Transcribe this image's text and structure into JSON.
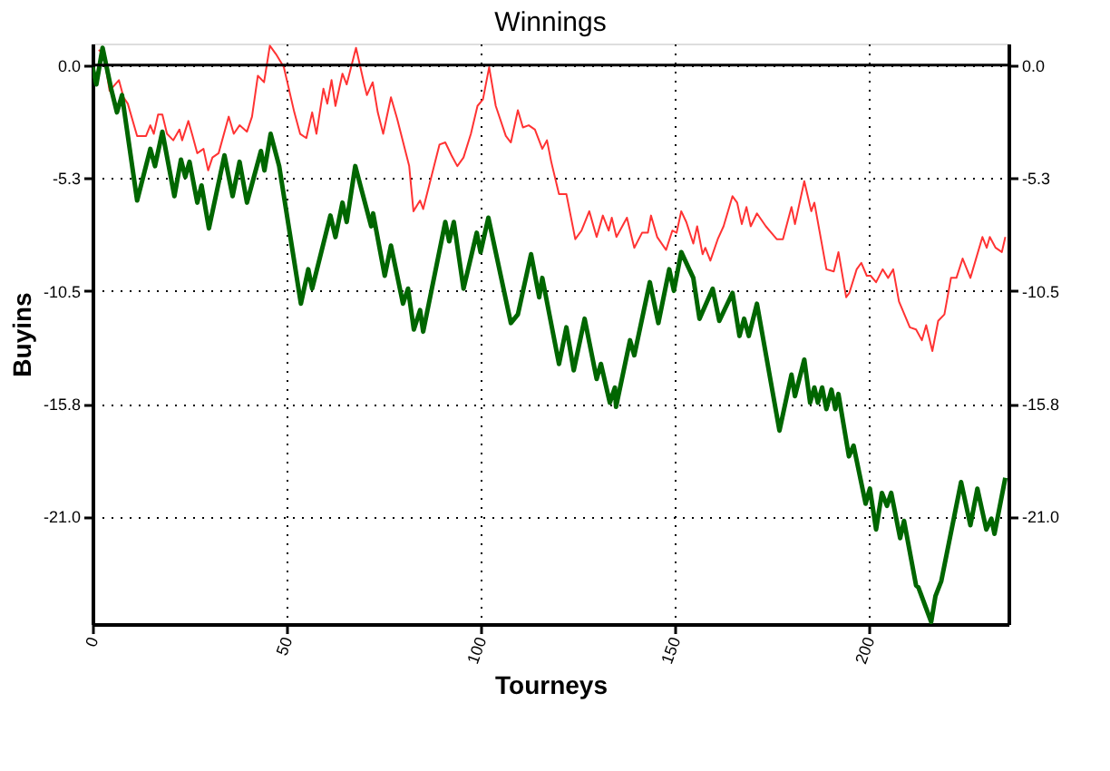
{
  "chart_data": {
    "type": "line",
    "title": "Winnings",
    "xlabel": "Tourneys",
    "ylabel": "Buyins",
    "xlim": [
      0,
      236
    ],
    "xticks": [
      0,
      50,
      100,
      150,
      200
    ],
    "ylim": [
      -26,
      1
    ],
    "yticks": [
      {
        "value": 0,
        "label": "0.0"
      },
      {
        "value": -5.25,
        "label": "-5.3"
      },
      -10.5,
      {
        "value": -15.75,
        "label": "-15.8"
      },
      {
        "value": -21,
        "label": "-21.0"
      }
    ],
    "y2lim": [
      -26,
      1
    ],
    "y2ticks": [
      {
        "value": 0,
        "label": "0.0"
      },
      {
        "value": -5.25,
        "label": "-5.3"
      },
      -10.5,
      {
        "value": -15.75,
        "label": "-15.8"
      },
      {
        "value": -21,
        "label": "-21.0"
      }
    ],
    "grid": true,
    "legend": false,
    "marker": "none",
    "line_style": "solid",
    "ref_lines": [
      {
        "axis": "y",
        "value": 0,
        "color": "#000000"
      }
    ],
    "series": [
      {
        "color": "#ff3333",
        "x": [
          1.6,
          2.9,
          4.4,
          6.8,
          8.0,
          9.1,
          11.5,
          13.8,
          14.9,
          15.8,
          16.9,
          18.0,
          19.2,
          20.8,
          22.4,
          23.1,
          24.7,
          25.8,
          27.0,
          28.6,
          29.8,
          30.9,
          32.5,
          35.1,
          36.4,
          37.9,
          39.8,
          41.1,
          42.6,
          44.2,
          45.7,
          47.3,
          49.3,
          52.0,
          53.5,
          55.1,
          56.6,
          57.7,
          59.5,
          60.5,
          61.6,
          62.6,
          64.4,
          65.5,
          67.9,
          69.9,
          70.7,
          72.2,
          73.5,
          74.9,
          76.9,
          78.5,
          81.6,
          82.7,
          84.4,
          85.2,
          89.4,
          90.9,
          92.5,
          94.0,
          95.6,
          97.5,
          99.2,
          100.6,
          102.2,
          103.9,
          106.5,
          107.8,
          109.6,
          110.9,
          112.4,
          114.0,
          115.9,
          117.1,
          118.2,
          120.2,
          122.1,
          124.4,
          126.0,
          128.0,
          129.9,
          131.5,
          133.0,
          133.8,
          135.0,
          137.7,
          139.6,
          141.6,
          143.1,
          143.9,
          145.5,
          147.8,
          149.4,
          150.5,
          151.7,
          153.0,
          154.8,
          155.8,
          157.2,
          157.9,
          159.2,
          161.1,
          162.6,
          164.9,
          166.1,
          167.3,
          168.5,
          169.6,
          171.2,
          173.5,
          176.3,
          177.9,
          180.1,
          181.0,
          183.4,
          185.2,
          186.0,
          189.1,
          191.0,
          192.2,
          194.2,
          195.0,
          196.9,
          198.1,
          199.5,
          200.5,
          201.9,
          203.6,
          205.0,
          206.3,
          207.8,
          210.6,
          212.2,
          213.7,
          214.8,
          216.4,
          217.9,
          219.5,
          221.2,
          222.6,
          224.2,
          226.2,
          229.3,
          230.4,
          231.2,
          232.7,
          234.3,
          235.2
        ],
        "values": [
          0.7,
          0.5,
          -1.2,
          -0.7,
          -1.5,
          -1.8,
          -3.3,
          -3.3,
          -2.8,
          -3.2,
          -2.3,
          -2.3,
          -3.2,
          -3.5,
          -3.0,
          -3.5,
          -2.6,
          -3.3,
          -4.1,
          -3.9,
          -4.9,
          -4.3,
          -4.1,
          -2.4,
          -3.2,
          -2.8,
          -3.1,
          -2.4,
          -0.5,
          -0.8,
          0.9,
          0.5,
          -0.1,
          -2.2,
          -3.2,
          -3.4,
          -2.2,
          -3.2,
          -1.1,
          -1.8,
          -0.7,
          -1.9,
          -0.4,
          -0.9,
          0.8,
          -0.8,
          -1.4,
          -0.8,
          -2.2,
          -3.2,
          -1.5,
          -2.5,
          -4.7,
          -6.8,
          -6.3,
          -6.7,
          -3.7,
          -3.6,
          -4.2,
          -4.7,
          -4.3,
          -3.2,
          -1.9,
          -1.6,
          -0.1,
          -1.9,
          -3.3,
          -3.6,
          -2.1,
          -2.9,
          -2.8,
          -3.0,
          -3.9,
          -3.5,
          -4.5,
          -6.0,
          -6.0,
          -8.1,
          -7.7,
          -6.8,
          -8.0,
          -7.0,
          -7.7,
          -7.1,
          -8.0,
          -7.1,
          -8.5,
          -7.8,
          -7.8,
          -7.0,
          -8.0,
          -8.6,
          -7.7,
          -7.8,
          -6.8,
          -7.3,
          -8.3,
          -7.5,
          -8.8,
          -8.5,
          -9.1,
          -8.1,
          -7.5,
          -6.1,
          -6.4,
          -7.4,
          -6.6,
          -7.5,
          -6.9,
          -7.5,
          -8.1,
          -8.1,
          -6.6,
          -7.4,
          -5.4,
          -6.8,
          -6.4,
          -9.5,
          -9.6,
          -8.7,
          -10.8,
          -10.6,
          -9.5,
          -9.2,
          -9.8,
          -9.8,
          -10.1,
          -9.5,
          -9.9,
          -9.5,
          -11.0,
          -12.2,
          -12.3,
          -12.8,
          -12.1,
          -13.3,
          -11.9,
          -11.6,
          -9.9,
          -9.9,
          -9.0,
          -9.9,
          -8.0,
          -8.5,
          -8.0,
          -8.5,
          -8.7,
          -8.0
        ]
      },
      {
        "color": "#006600",
        "x": [
          0,
          1.0,
          2.6,
          4.8,
          6.3,
          7.6,
          11.5,
          14.9,
          16.1,
          18.0,
          21.1,
          22.8,
          23.9,
          25.0,
          27.0,
          28.1,
          30.0,
          34.0,
          36.1,
          37.9,
          39.8,
          43.4,
          44.3,
          45.9,
          48.1,
          53.7,
          55.6,
          56.6,
          61.3,
          62.6,
          64.4,
          65.5,
          67.7,
          71.8,
          72.3,
          75.3,
          76.9,
          80.0,
          81.3,
          82.8,
          84.4,
          85.2,
          90.9,
          91.9,
          93.1,
          95.6,
          99.0,
          100.0,
          102.0,
          107.8,
          109.6,
          113.0,
          115.1,
          115.9,
          120.2,
          122.1,
          124.0,
          126.8,
          129.9,
          131.0,
          133.3,
          134.6,
          134.9,
          138.5,
          139.6,
          143.6,
          145.8,
          148.6,
          149.8,
          151.7,
          154.8,
          156.4,
          159.8,
          161.5,
          164.9,
          166.7,
          167.9,
          169.1,
          171.2,
          177.0,
          180.1,
          181.0,
          183.4,
          184.9,
          186.0,
          186.9,
          188.0,
          189.1,
          190.4,
          191.4,
          192.2,
          194.9,
          196.1,
          199.2,
          200.3,
          201.9,
          203.4,
          204.7,
          205.8,
          208.1,
          209.1,
          212.2,
          212.8,
          216.1,
          217.2,
          218.7,
          223.8,
          226.2,
          228.0,
          230.3,
          231.6,
          232.4,
          235.2
        ],
        "values": [
          -0.1,
          -0.9,
          0.8,
          -1.1,
          -2.2,
          -1.4,
          -6.3,
          -3.9,
          -4.7,
          -3.1,
          -6.1,
          -4.4,
          -5.2,
          -4.5,
          -6.4,
          -5.6,
          -7.6,
          -4.2,
          -6.1,
          -4.5,
          -6.4,
          -4.0,
          -4.9,
          -3.2,
          -4.7,
          -11.1,
          -9.5,
          -10.4,
          -7.0,
          -8.0,
          -6.4,
          -7.3,
          -4.7,
          -7.5,
          -6.9,
          -9.8,
          -8.4,
          -11.1,
          -10.4,
          -12.3,
          -11.4,
          -12.4,
          -7.3,
          -8.2,
          -7.3,
          -10.4,
          -7.8,
          -8.7,
          -7.1,
          -12.0,
          -11.6,
          -8.8,
          -10.8,
          -9.9,
          -13.9,
          -12.2,
          -14.2,
          -11.8,
          -14.6,
          -13.9,
          -15.7,
          -15.0,
          -15.9,
          -12.8,
          -13.5,
          -10.1,
          -12.0,
          -9.5,
          -10.5,
          -8.7,
          -9.9,
          -11.8,
          -10.4,
          -11.9,
          -10.6,
          -12.6,
          -11.8,
          -12.6,
          -11.1,
          -17.0,
          -14.4,
          -15.4,
          -13.7,
          -15.7,
          -15.0,
          -15.7,
          -15.0,
          -16.0,
          -15.1,
          -16.0,
          -15.3,
          -18.2,
          -17.7,
          -20.4,
          -19.7,
          -21.6,
          -19.9,
          -20.5,
          -19.9,
          -22.0,
          -21.2,
          -24.2,
          -24.3,
          -25.9,
          -24.7,
          -24.0,
          -19.4,
          -21.4,
          -19.7,
          -21.6,
          -21.1,
          -21.8,
          -19.2
        ]
      }
    ]
  }
}
